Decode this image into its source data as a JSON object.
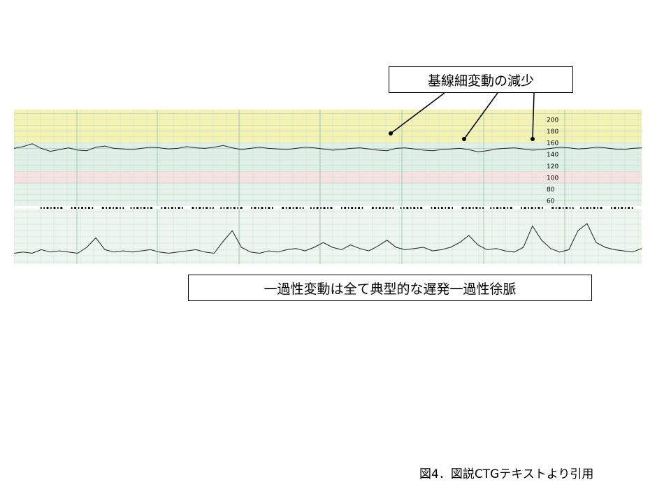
{
  "callout_top": "基線細変動の減少",
  "callout_bottom": "一過性変動は全て典型的な遅発一過性徐脈",
  "caption": "図4．図説CTGテキストより引用",
  "fhr_scale": [
    "200",
    "180",
    "160",
    "140",
    "120",
    "100",
    "80",
    "60"
  ],
  "chart_data": {
    "type": "line",
    "series": [
      {
        "values": [
          150,
          153,
          158,
          150,
          145,
          148,
          151,
          147,
          146,
          152,
          154,
          150,
          149,
          148,
          150,
          152,
          151,
          149,
          150,
          153,
          151,
          150,
          152,
          155,
          151,
          148,
          150,
          152,
          150,
          149,
          148,
          150,
          152,
          151,
          149,
          147,
          148,
          150,
          151,
          149,
          147,
          146,
          150,
          151,
          149,
          147,
          146,
          148,
          149,
          150,
          148,
          144,
          146,
          149,
          150,
          151,
          149,
          147,
          148,
          150,
          152,
          151,
          149,
          150,
          152,
          151,
          149,
          148,
          150,
          151
        ]
      },
      {
        "values": [
          5,
          6,
          5,
          8,
          6,
          7,
          6,
          5,
          10,
          18,
          8,
          6,
          7,
          6,
          7,
          8,
          6,
          5,
          6,
          7,
          8,
          6,
          5,
          15,
          24,
          10,
          6,
          5,
          7,
          6,
          8,
          9,
          7,
          10,
          14,
          10,
          8,
          12,
          9,
          7,
          11,
          16,
          10,
          8,
          9,
          10,
          7,
          8,
          10,
          14,
          20,
          12,
          8,
          9,
          7,
          6,
          10,
          28,
          16,
          9,
          6,
          8,
          24,
          30,
          14,
          10,
          8,
          7,
          6,
          9
        ]
      }
    ]
  }
}
